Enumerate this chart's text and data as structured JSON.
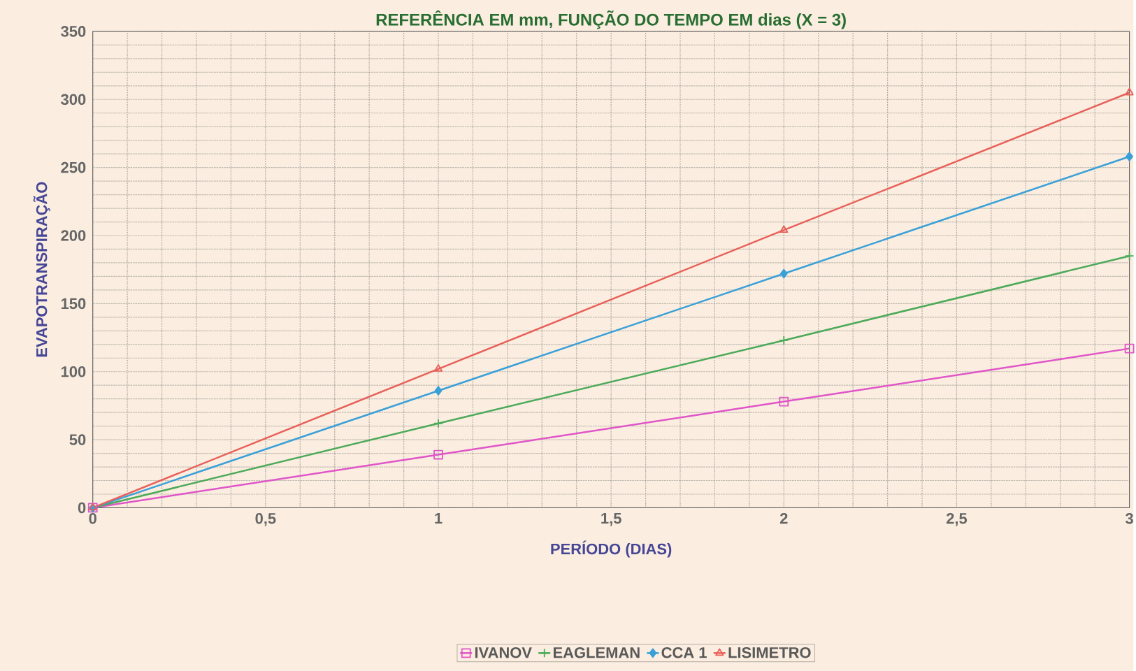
{
  "chart_data": {
    "type": "line",
    "title": "REFERÊNCIA EM mm, FUNÇÃO DO TEMPO EM dias (X = 3)",
    "xlabel": "PERÍODO (DIAS)",
    "ylabel": "EVAPOTRANSPIRAÇÃO",
    "x": [
      0,
      1,
      2,
      3
    ],
    "series": [
      {
        "name": "IVANOV",
        "color": "#e055c8",
        "marker": "square",
        "values": [
          0,
          39,
          78,
          117
        ]
      },
      {
        "name": "EAGLEMAN",
        "color": "#4caa5a",
        "marker": "cross",
        "values": [
          0,
          62,
          123,
          185
        ]
      },
      {
        "name": "CCA 1",
        "color": "#3aa0d8",
        "marker": "diamond",
        "values": [
          0,
          86,
          172,
          258
        ]
      },
      {
        "name": "LISIMETRO",
        "color": "#e8605a",
        "marker": "triangle",
        "values": [
          0,
          102,
          204,
          305
        ]
      }
    ],
    "xlim": [
      0,
      3
    ],
    "ylim": [
      0,
      350
    ],
    "xticks": [
      0,
      {
        "value": 0.5,
        "label": "0,5"
      },
      1,
      {
        "value": 1.5,
        "label": "1,5"
      },
      2,
      {
        "value": 2.5,
        "label": "2,5"
      },
      3
    ],
    "yticks": [
      0,
      50,
      100,
      150,
      200,
      250,
      300,
      350
    ],
    "grid": true,
    "legend": "bottom"
  }
}
